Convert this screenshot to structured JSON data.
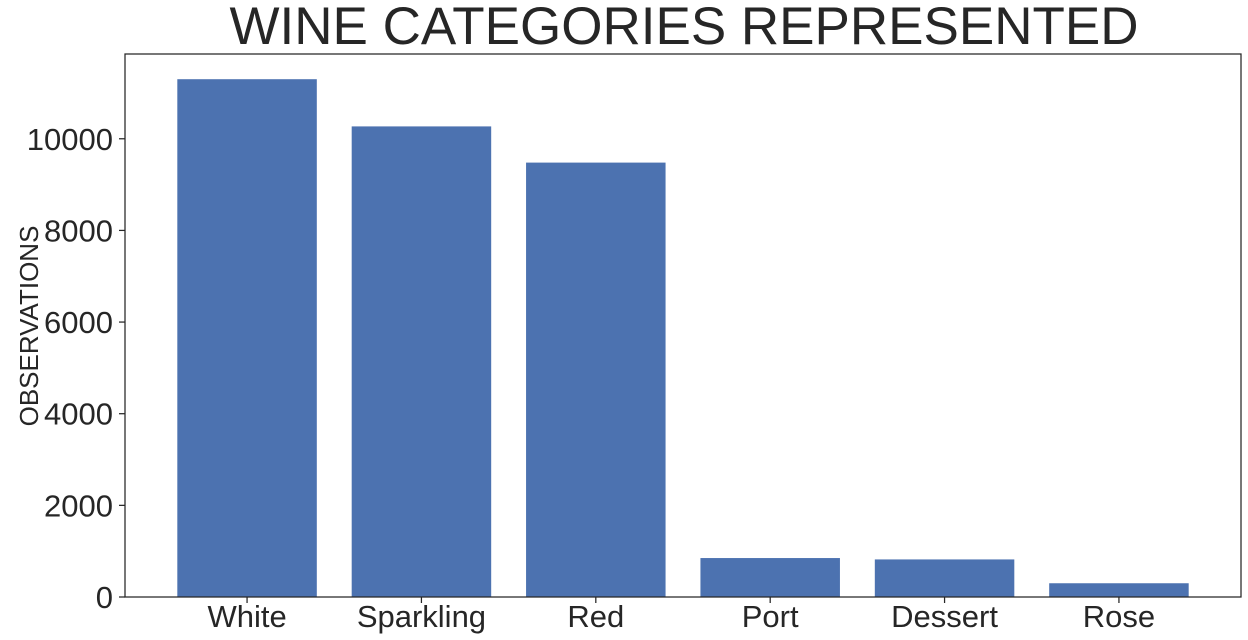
{
  "chart_data": {
    "type": "bar",
    "title": "WINE CATEGORIES REPRESENTED",
    "xlabel": "",
    "ylabel": "OBSERVATIONS",
    "categories": [
      "White",
      "Sparkling",
      "Red",
      "Port",
      "Dessert",
      "Rose"
    ],
    "values": [
      11300,
      10270,
      9480,
      850,
      820,
      300
    ],
    "ylim": [
      0,
      11850
    ],
    "yticks": [
      0,
      2000,
      4000,
      6000,
      8000,
      10000
    ],
    "ytick_labels": [
      "0",
      "2000",
      "4000",
      "6000",
      "8000",
      "10000"
    ],
    "grid": false,
    "legend": "none",
    "bar_color": "#4c72b0",
    "axis_color": "#262626"
  }
}
